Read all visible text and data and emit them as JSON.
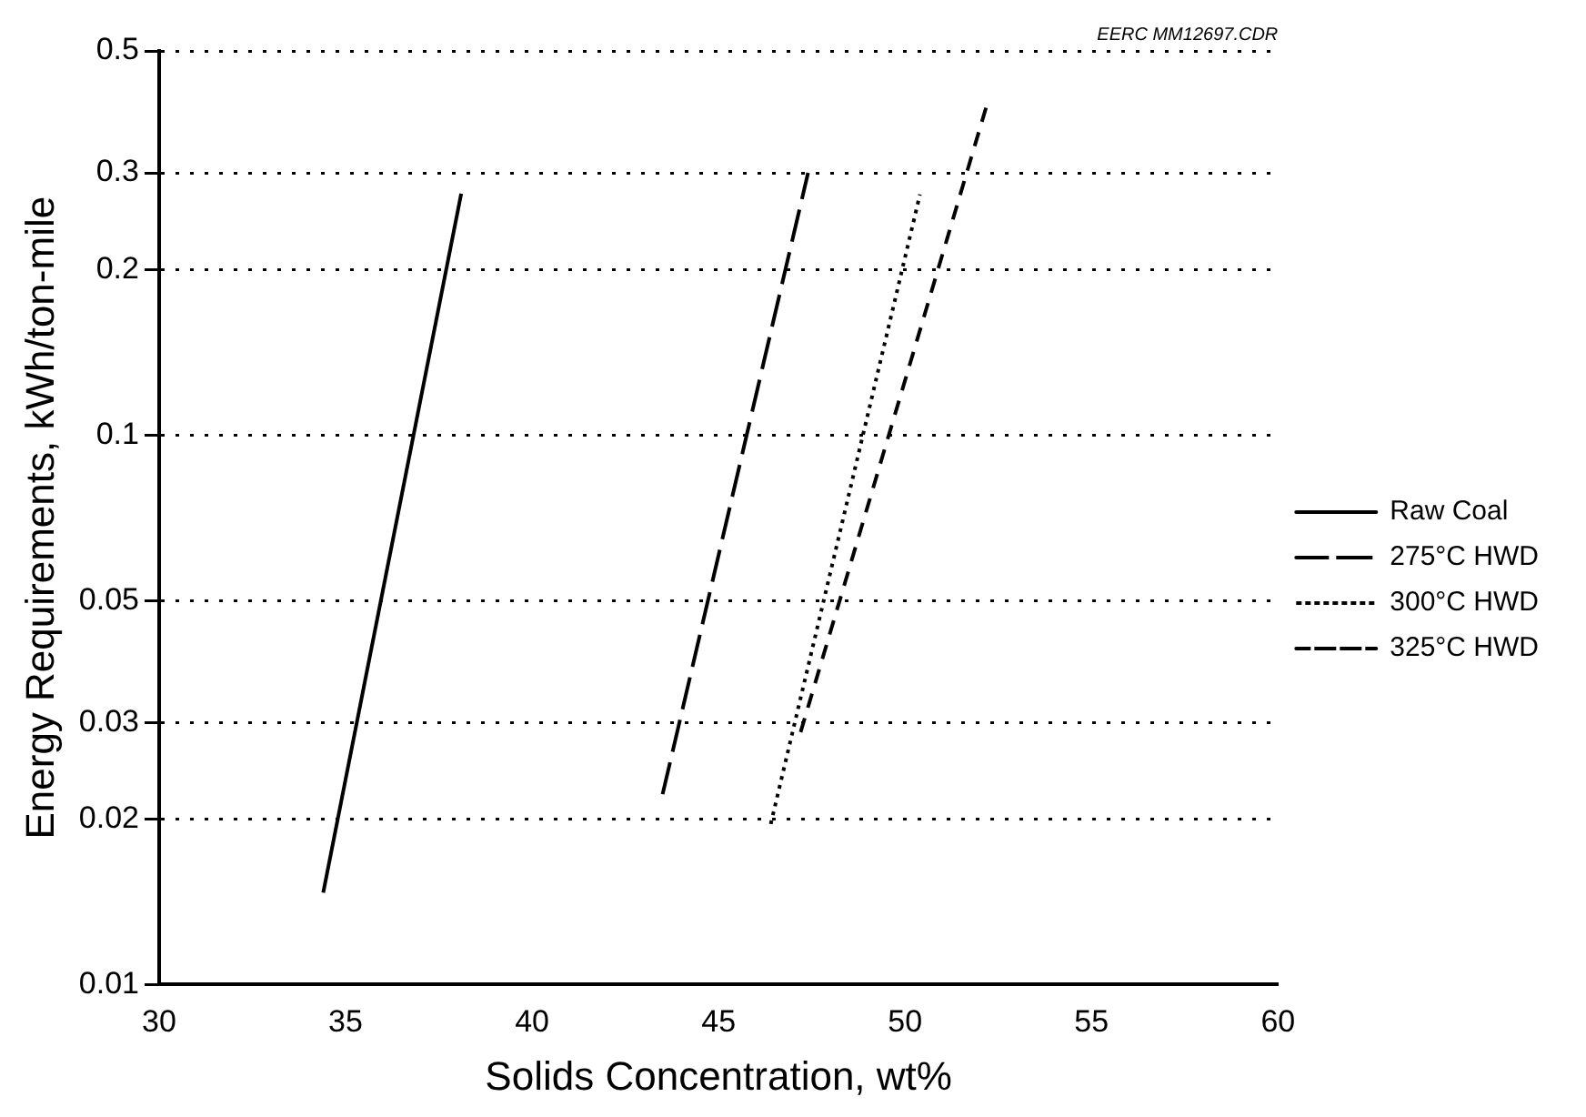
{
  "chart_data": {
    "type": "line",
    "xlabel": "Solids Concentration, wt%",
    "ylabel": "Energy Requirements, kWh/ton-mile",
    "annotations": [
      "EERC MM12697.CDR"
    ],
    "xlim": [
      30,
      60
    ],
    "xticks": [
      30,
      35,
      40,
      45,
      50,
      55,
      60
    ],
    "ylim": [
      0.01,
      0.5
    ],
    "yticks": [
      0.01,
      0.02,
      0.03,
      0.05,
      0.1,
      0.2,
      0.3,
      0.5
    ],
    "log": "y",
    "grid": "y",
    "legend": "right",
    "marker": "none",
    "series": [
      {
        "name": "Raw Coal",
        "color": "#000000",
        "line_style": "solid",
        "x": [
          34.4,
          38.1
        ],
        "values": [
          0.0147,
          0.275
        ]
      },
      {
        "name": "275°C HWD",
        "color": "#000000",
        "line_style": "longdash",
        "x": [
          43.5,
          47.4
        ],
        "values": [
          0.0222,
          0.3
        ]
      },
      {
        "name": "300°C HWD",
        "color": "#000000",
        "line_style": "dotted",
        "x": [
          46.4,
          50.4
        ],
        "values": [
          0.0196,
          0.274
        ]
      },
      {
        "name": "325°C HWD",
        "color": "#000000",
        "line_style": "dashed",
        "x": [
          47.2,
          52.2
        ],
        "values": [
          0.0288,
          0.4
        ]
      }
    ]
  }
}
